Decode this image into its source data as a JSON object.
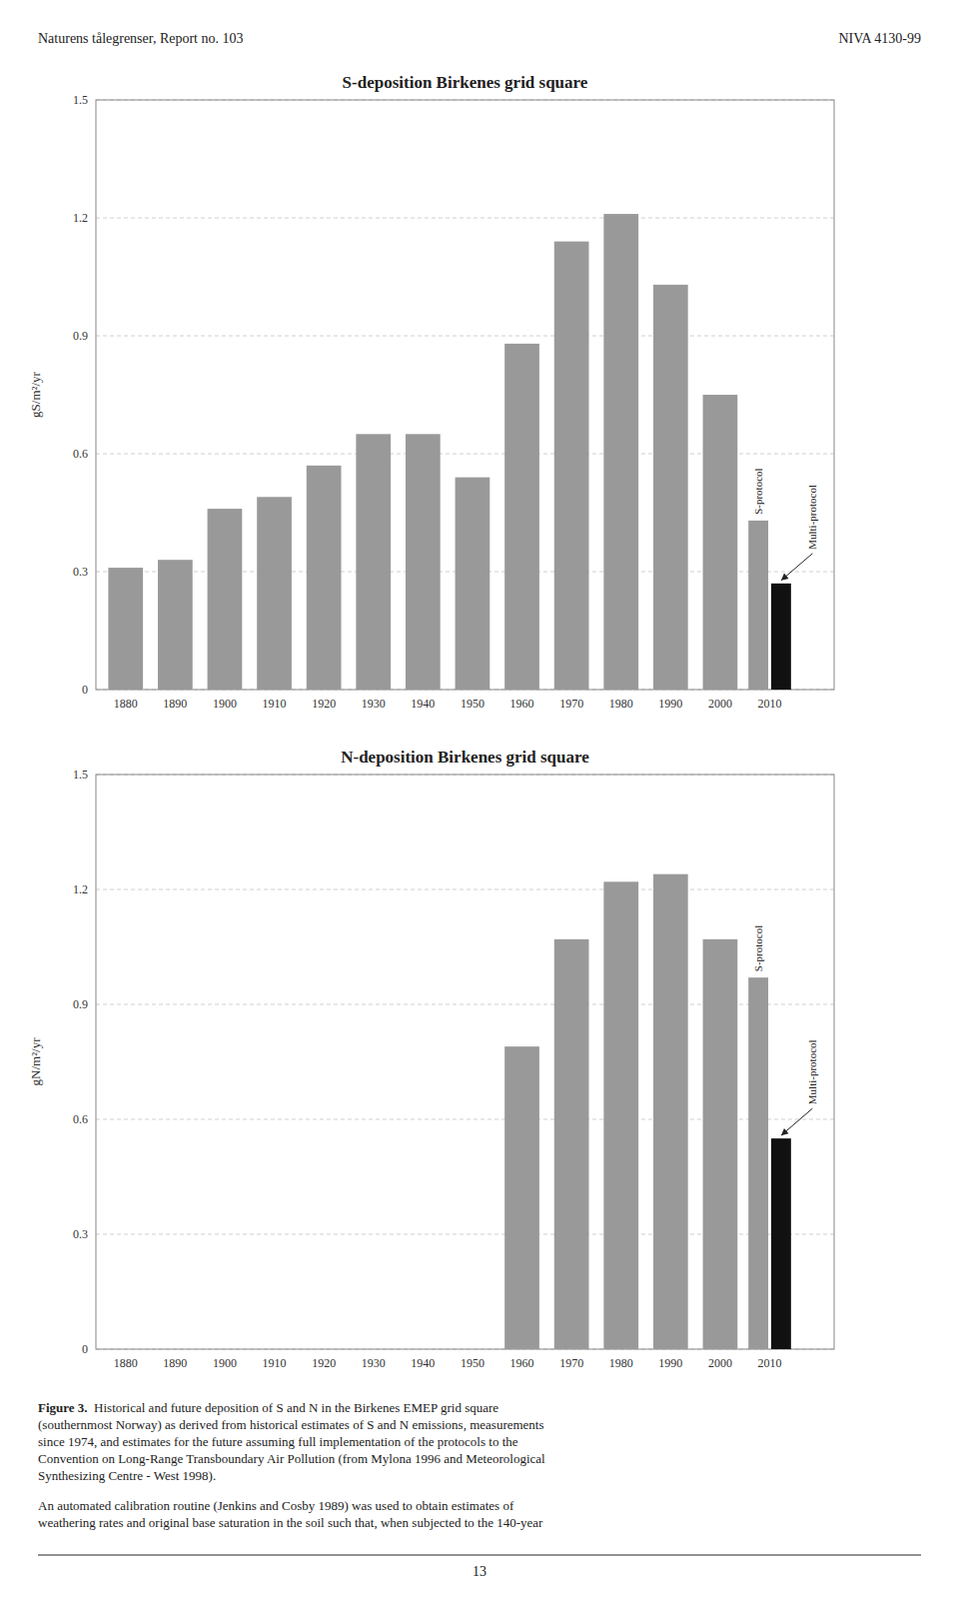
{
  "header_left": "Naturens tålegrenser, Report no. 103",
  "header_right": "NIVA 4130-99",
  "caption_label": "Figure 3.",
  "caption": "  Historical and future deposition of S and N in the Birkenes EMEP grid square\n(southernmost Norway) as derived from historical estimates of S and N emissions, measurements\nsince 1974, and estimates for the future assuming full implementation of the protocols to the\nConvention on Long-Range Transboundary Air Pollution (from Mylona 1996 and Meteorological\nSynthesizing Centre - West 1998).",
  "paragraph": "An automated calibration routine (Jenkins and Cosby 1989) was used to obtain estimates of\nweathering rates and original base saturation in the soil such that, when subjected to the 140-year",
  "page_number": "13",
  "chart_data": [
    {
      "type": "bar",
      "title": "S-deposition Birkenes grid square",
      "y_label": "gS/m²/yr",
      "categories": [
        "1880",
        "1890",
        "1900",
        "1910",
        "1920",
        "1930",
        "1940",
        "1950",
        "1960",
        "1970",
        "1980",
        "1990",
        "2000",
        "2010"
      ],
      "series": [
        {
          "color": "#999999",
          "values": [
            0.31,
            0.33,
            0.46,
            0.49,
            0.57,
            0.65,
            0.65,
            0.54,
            0.88,
            1.14,
            1.21,
            1.03,
            0.75,
            null
          ]
        },
        {
          "name": "S-protocol",
          "color": "#999999",
          "values": [
            null,
            null,
            null,
            null,
            null,
            null,
            null,
            null,
            null,
            null,
            null,
            null,
            null,
            0.43
          ]
        },
        {
          "name": "Multi-protocol",
          "color": "#111111",
          "values": [
            null,
            null,
            null,
            null,
            null,
            null,
            null,
            null,
            null,
            null,
            null,
            null,
            null,
            0.27
          ]
        }
      ],
      "ylim": [
        0,
        1.5
      ],
      "yticks": [
        0,
        0.3,
        0.6,
        0.9,
        1.2,
        1.5
      ],
      "grid": true
    },
    {
      "type": "bar",
      "title": "N-deposition Birkenes grid square",
      "y_label": "gN/m²/yr",
      "categories": [
        "1880",
        "1890",
        "1900",
        "1910",
        "1920",
        "1930",
        "1940",
        "1950",
        "1960",
        "1970",
        "1980",
        "1990",
        "2000",
        "2010"
      ],
      "series": [
        {
          "color": "#999999",
          "values": [
            null,
            null,
            null,
            null,
            null,
            null,
            null,
            null,
            0.79,
            1.07,
            1.22,
            1.24,
            1.07,
            null
          ]
        },
        {
          "name": "S-protocol",
          "color": "#999999",
          "values": [
            null,
            null,
            null,
            null,
            null,
            null,
            null,
            null,
            null,
            null,
            null,
            null,
            null,
            0.97
          ]
        },
        {
          "name": "Multi-protocol",
          "color": "#111111",
          "values": [
            null,
            null,
            null,
            null,
            null,
            null,
            null,
            null,
            null,
            null,
            null,
            null,
            null,
            0.55
          ]
        }
      ],
      "ylim": [
        0,
        1.5
      ],
      "yticks": [
        0,
        0.3,
        0.6,
        0.9,
        1.2,
        1.5
      ],
      "grid": true
    }
  ]
}
